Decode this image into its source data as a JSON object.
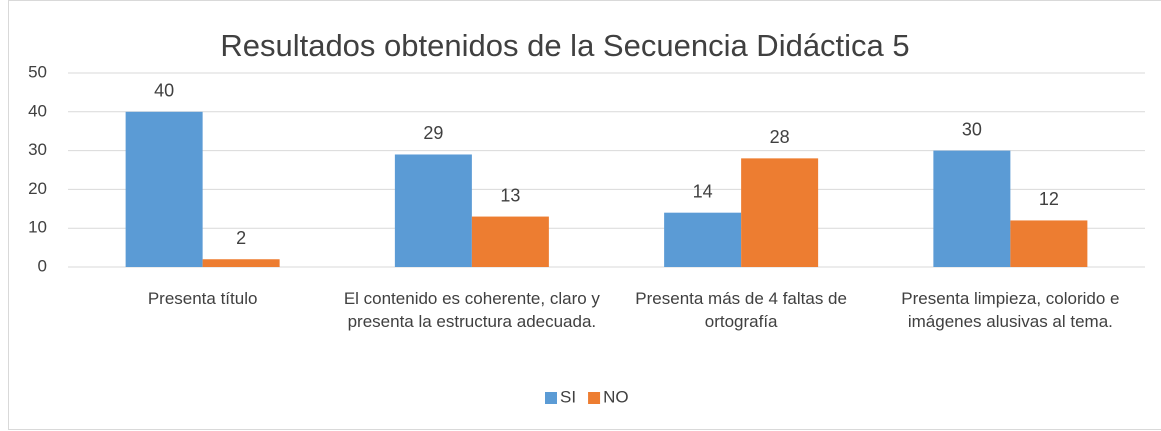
{
  "chart_data": {
    "type": "bar",
    "title": "Resultados obtenidos de la Secuencia Didáctica 5",
    "categories": [
      "Presenta título",
      "El contenido es coherente, claro y presenta la estructura adecuada.",
      "Presenta más de 4 faltas de ortografía",
      "Presenta limpieza, colorido e imágenes alusivas al tema."
    ],
    "series": [
      {
        "name": "SI",
        "color": "#5b9bd5",
        "values": [
          40,
          29,
          14,
          30
        ]
      },
      {
        "name": "NO",
        "color": "#ed7d31",
        "values": [
          2,
          13,
          28,
          12
        ]
      }
    ],
    "ylim": [
      0,
      50
    ],
    "yticks": [
      0,
      10,
      20,
      30,
      40,
      50
    ],
    "grid": true,
    "legend": "bottom"
  }
}
